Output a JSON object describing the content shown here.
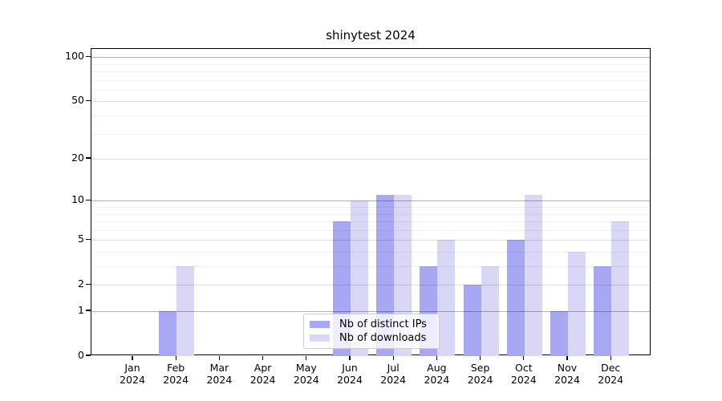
{
  "chart_data": {
    "type": "bar",
    "title": "shinytest 2024",
    "categories": [
      "Jan",
      "Feb",
      "Mar",
      "Apr",
      "May",
      "Jun",
      "Jul",
      "Aug",
      "Sep",
      "Oct",
      "Nov",
      "Dec"
    ],
    "year_label": "2024",
    "series": [
      {
        "name": "Nb of distinct IPs",
        "color": "#a7a7f3",
        "values": [
          0,
          1,
          0,
          0,
          0,
          7,
          11,
          3,
          2,
          5,
          1,
          3
        ]
      },
      {
        "name": "Nb of downloads",
        "color": "#d8d8f6",
        "values": [
          0,
          3,
          0,
          0,
          0,
          10,
          11,
          5,
          3,
          11,
          4,
          7
        ]
      }
    ],
    "xlabel": "",
    "ylabel": "",
    "yscale": "log1p",
    "ylim": [
      0,
      114
    ],
    "yticks": [
      0,
      1,
      2,
      5,
      10,
      20,
      50,
      100
    ],
    "gridlines": {
      "decade": [
        1,
        10,
        100
      ],
      "mid": [
        2,
        5,
        20,
        50
      ],
      "minor": [
        3,
        4,
        6,
        7,
        8,
        9,
        30,
        40,
        60,
        70,
        80,
        90
      ]
    },
    "grid": true,
    "legend_position": "lower center",
    "background_color": "#ffffff",
    "axis_color": "#000000"
  }
}
